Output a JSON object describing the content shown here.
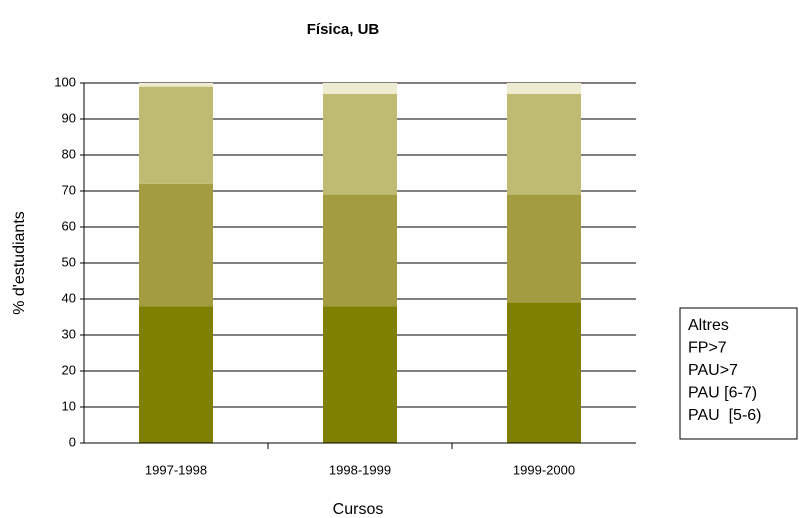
{
  "chart_data": {
    "type": "stacked_bar",
    "title": "Física, UB",
    "x_label": "Cursos",
    "y_label": "% d'estudiants",
    "categories": [
      "1997-1998",
      "1998-1999",
      "1999-2000"
    ],
    "series": [
      {
        "name": "PAU  [5-6)",
        "color": "#808000",
        "values": [
          38,
          38,
          39
        ]
      },
      {
        "name": "PAU [6-7)",
        "color": "#a39b40",
        "values": [
          34,
          31,
          30
        ]
      },
      {
        "name": "PAU>7",
        "color": "#bfbb72",
        "values": [
          27,
          28,
          28
        ]
      },
      {
        "name": "FP>7",
        "color": "#dcd9a6",
        "values": [
          0,
          0,
          0
        ]
      },
      {
        "name": "Altres",
        "color": "#eeecd0",
        "values": [
          1,
          3,
          3
        ]
      }
    ],
    "ylim": [
      0,
      100
    ],
    "yticks": [
      0,
      10,
      20,
      30,
      40,
      50,
      60,
      70,
      80,
      90,
      100
    ],
    "grid": true
  }
}
